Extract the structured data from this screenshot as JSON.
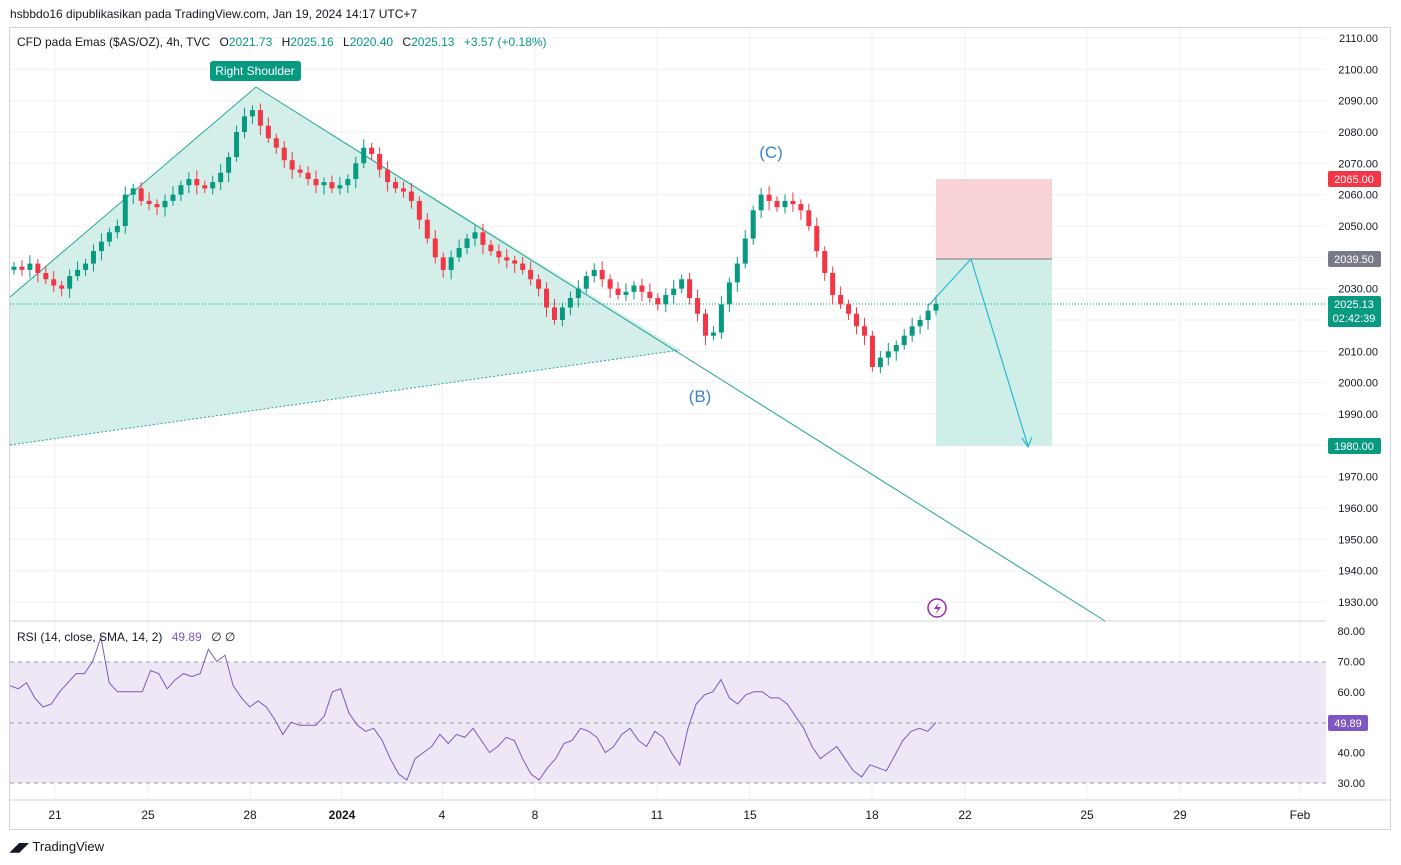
{
  "header": {
    "publisher": "hsbbdo16 dipublikasikan pada TradingView.com, Jan 19, 2024 14:17 UTC+7"
  },
  "legend": {
    "symbol": "CFD pada Emas ($AS/OZ), 4h, TVC",
    "open_label": "O",
    "open": "2021.73",
    "high_label": "H",
    "high": "2025.16",
    "low_label": "L",
    "low": "2020.40",
    "close_label": "C",
    "close": "2025.13",
    "change": "+3.57 (+0.18%)"
  },
  "rsi_legend": {
    "label": "RSI (14, close, SMA, 14, 2)",
    "value": "49.89",
    "icons": "∅  ∅"
  },
  "annotations": {
    "right_shoulder": "Right Shoulder",
    "wave_b": "(B)",
    "wave_c": "(C)"
  },
  "price_tags": {
    "stop": "2065.00",
    "entry": "2039.50",
    "last": "2025.13",
    "countdown": "02:42:39",
    "target": "1980.00",
    "rsi": "49.89"
  },
  "footer": {
    "brand": "TradingView"
  },
  "colors": {
    "up": "#089981",
    "down": "#f23645",
    "rsi_line": "#7e57c2",
    "rsi_band": "#ede7f6",
    "pattern_fill": "#d4efe9",
    "pattern_line": "#26a69a",
    "risk": "#f9d2d6",
    "reward": "#cfeee8",
    "target_arrow": "#29b6d6",
    "wave_text": "#3d85c6"
  },
  "chart_data": [
    {
      "type": "candlestick",
      "timeframe": "4h",
      "x_ticks": [
        "21",
        "25",
        "28",
        "2024",
        "4",
        "8",
        "11",
        "15",
        "18",
        "22",
        "25",
        "29",
        "Feb"
      ],
      "y_ticks": [
        "2110.00",
        "2100.00",
        "2090.00",
        "2080.00",
        "2070.00",
        "2060.00",
        "2050.00",
        "2040.00",
        "2030.00",
        "2020.00",
        "2010.00",
        "2000.00",
        "1990.00",
        "1980.00",
        "1970.00",
        "1960.00",
        "1950.00",
        "1940.00",
        "1930.00"
      ],
      "ylim": [
        1925,
        2115
      ],
      "close_path": [
        2037,
        2036,
        2038,
        2035,
        2033,
        2031,
        2030,
        2034,
        2036,
        2038,
        2042,
        2045,
        2048,
        2050,
        2060,
        2062,
        2058,
        2057,
        2056,
        2058,
        2060,
        2063,
        2065,
        2063,
        2062,
        2064,
        2067,
        2072,
        2080,
        2085,
        2087,
        2082,
        2078,
        2075,
        2071,
        2068,
        2067,
        2065,
        2063,
        2064,
        2062,
        2063,
        2065,
        2070,
        2075,
        2073,
        2068,
        2064,
        2062,
        2061,
        2058,
        2052,
        2046,
        2040,
        2036,
        2040,
        2043,
        2046,
        2048,
        2044,
        2042,
        2040,
        2039,
        2038,
        2036,
        2033,
        2030,
        2024,
        2020,
        2024,
        2027,
        2030,
        2034,
        2036,
        2033,
        2030,
        2028,
        2029,
        2031,
        2029,
        2027,
        2025,
        2028,
        2030,
        2033,
        2027,
        2022,
        2015,
        2016,
        2025,
        2032,
        2038,
        2046,
        2055,
        2060,
        2058,
        2056,
        2058,
        2057,
        2055,
        2050,
        2042,
        2035,
        2028,
        2025,
        2022,
        2018,
        2015,
        2005,
        2008,
        2010,
        2012,
        2015,
        2018,
        2020,
        2023,
        2025.13
      ],
      "last_price": 2025.13
    },
    {
      "type": "line",
      "name": "RSI (14, close, SMA, 14, 2)",
      "yticks": [
        "80.00",
        "70.00",
        "60.00",
        "50.00",
        "40.00",
        "30.00"
      ],
      "ylim": [
        28,
        82
      ],
      "band": [
        30,
        70
      ],
      "mid": 50,
      "values": [
        62,
        61,
        63,
        58,
        55,
        56,
        60,
        63,
        66,
        66,
        70,
        78,
        63,
        60,
        60,
        60,
        60,
        67,
        66,
        61,
        64,
        66,
        65,
        66,
        74,
        70,
        72,
        62,
        58,
        55,
        57,
        55,
        51,
        46,
        50,
        49,
        49,
        49,
        52,
        60,
        61,
        53,
        49,
        47,
        48,
        44,
        38,
        33,
        31,
        38,
        40,
        42,
        46,
        43,
        46,
        45,
        48,
        44,
        40,
        42,
        45,
        44,
        38,
        33,
        31,
        35,
        38,
        43,
        44,
        48,
        47,
        45,
        40,
        42,
        46,
        48,
        44,
        42,
        47,
        45,
        40,
        36,
        48,
        56,
        59,
        60,
        64,
        58,
        56,
        59,
        60,
        60,
        58,
        58,
        56,
        52,
        48,
        42,
        38,
        40,
        42,
        38,
        34,
        32,
        36,
        35,
        34,
        39,
        44,
        47,
        48,
        47,
        49.89
      ],
      "last_value": 49.89
    }
  ]
}
